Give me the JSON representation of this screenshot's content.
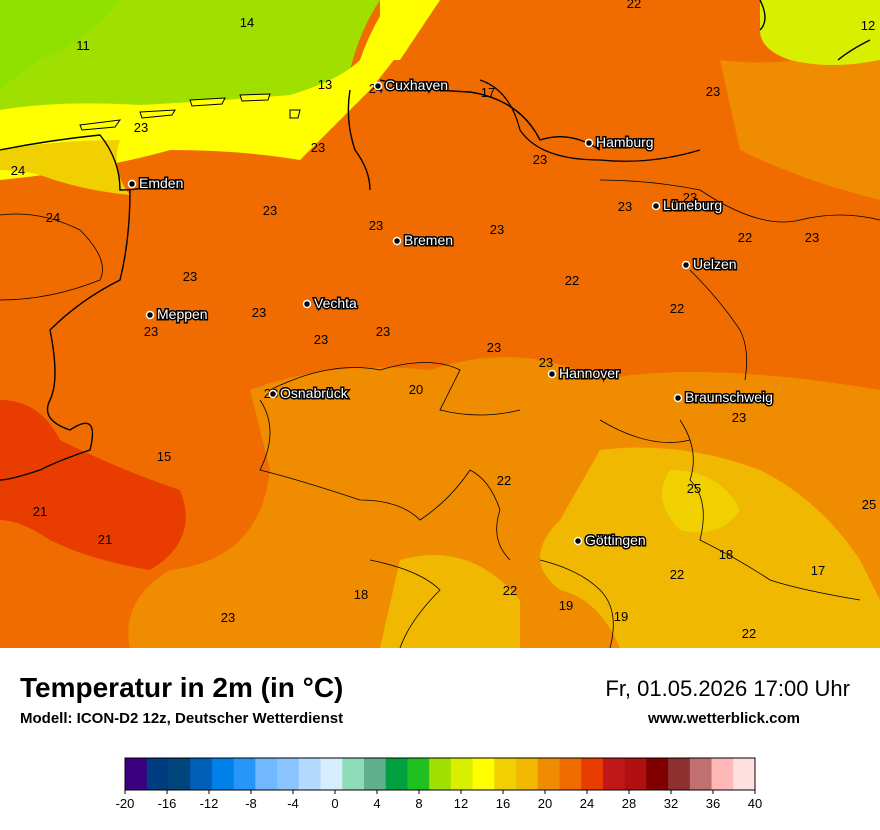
{
  "map": {
    "cities": [
      {
        "name": "Cuxhaven"
      },
      {
        "name": "Hamburg"
      },
      {
        "name": "Emden"
      },
      {
        "name": "Lüneburg"
      },
      {
        "name": "Bremen"
      },
      {
        "name": "Uelzen"
      },
      {
        "name": "Meppen"
      },
      {
        "name": "Vechta"
      },
      {
        "name": "Hannover"
      },
      {
        "name": "Osnabrück"
      },
      {
        "name": "Braunschweig"
      },
      {
        "name": "Göttingen"
      }
    ],
    "values": [
      "11",
      "14",
      "13",
      "24",
      "17",
      "22",
      "12",
      "23",
      "23",
      "23",
      "23",
      "24",
      "24",
      "23",
      "23",
      "23",
      "23",
      "23",
      "22",
      "22",
      "23",
      "23",
      "23",
      "22",
      "23",
      "23",
      "23",
      "23",
      "23",
      "23",
      "20",
      "23",
      "15",
      "22",
      "25",
      "25",
      "21",
      "21",
      "18",
      "17",
      "22",
      "18",
      "22",
      "19",
      "19",
      "22",
      "23"
    ]
  },
  "footer": {
    "title": "Temperatur in 2m (in °C)",
    "model": "Modell: ICON-D2 12z, Deutscher Wetterdienst",
    "datetime": "Fr, 01.05.2026 17:00 Uhr",
    "website": "www.wetterblick.com"
  },
  "colorbar": {
    "colors": [
      "#3a0080",
      "#003c80",
      "#00447c",
      "#0060b8",
      "#0080e8",
      "#2896f8",
      "#70b8ff",
      "#8ac4ff",
      "#b4daff",
      "#d8ecff",
      "#90dcb8",
      "#60b090",
      "#00a040",
      "#20c020",
      "#a0e000",
      "#d8f000",
      "#ffff00",
      "#f0d000",
      "#f0b800",
      "#f08c00",
      "#f06c00",
      "#e83c00",
      "#c01818",
      "#b01010",
      "#800000",
      "#8c3030",
      "#c07070",
      "#ffb8b8",
      "#ffe0e0"
    ],
    "ticks": [
      "-20",
      "-16",
      "-12",
      "-8",
      "-4",
      "0",
      "4",
      "8",
      "12",
      "16",
      "20",
      "24",
      "28",
      "32",
      "36",
      "40"
    ]
  }
}
